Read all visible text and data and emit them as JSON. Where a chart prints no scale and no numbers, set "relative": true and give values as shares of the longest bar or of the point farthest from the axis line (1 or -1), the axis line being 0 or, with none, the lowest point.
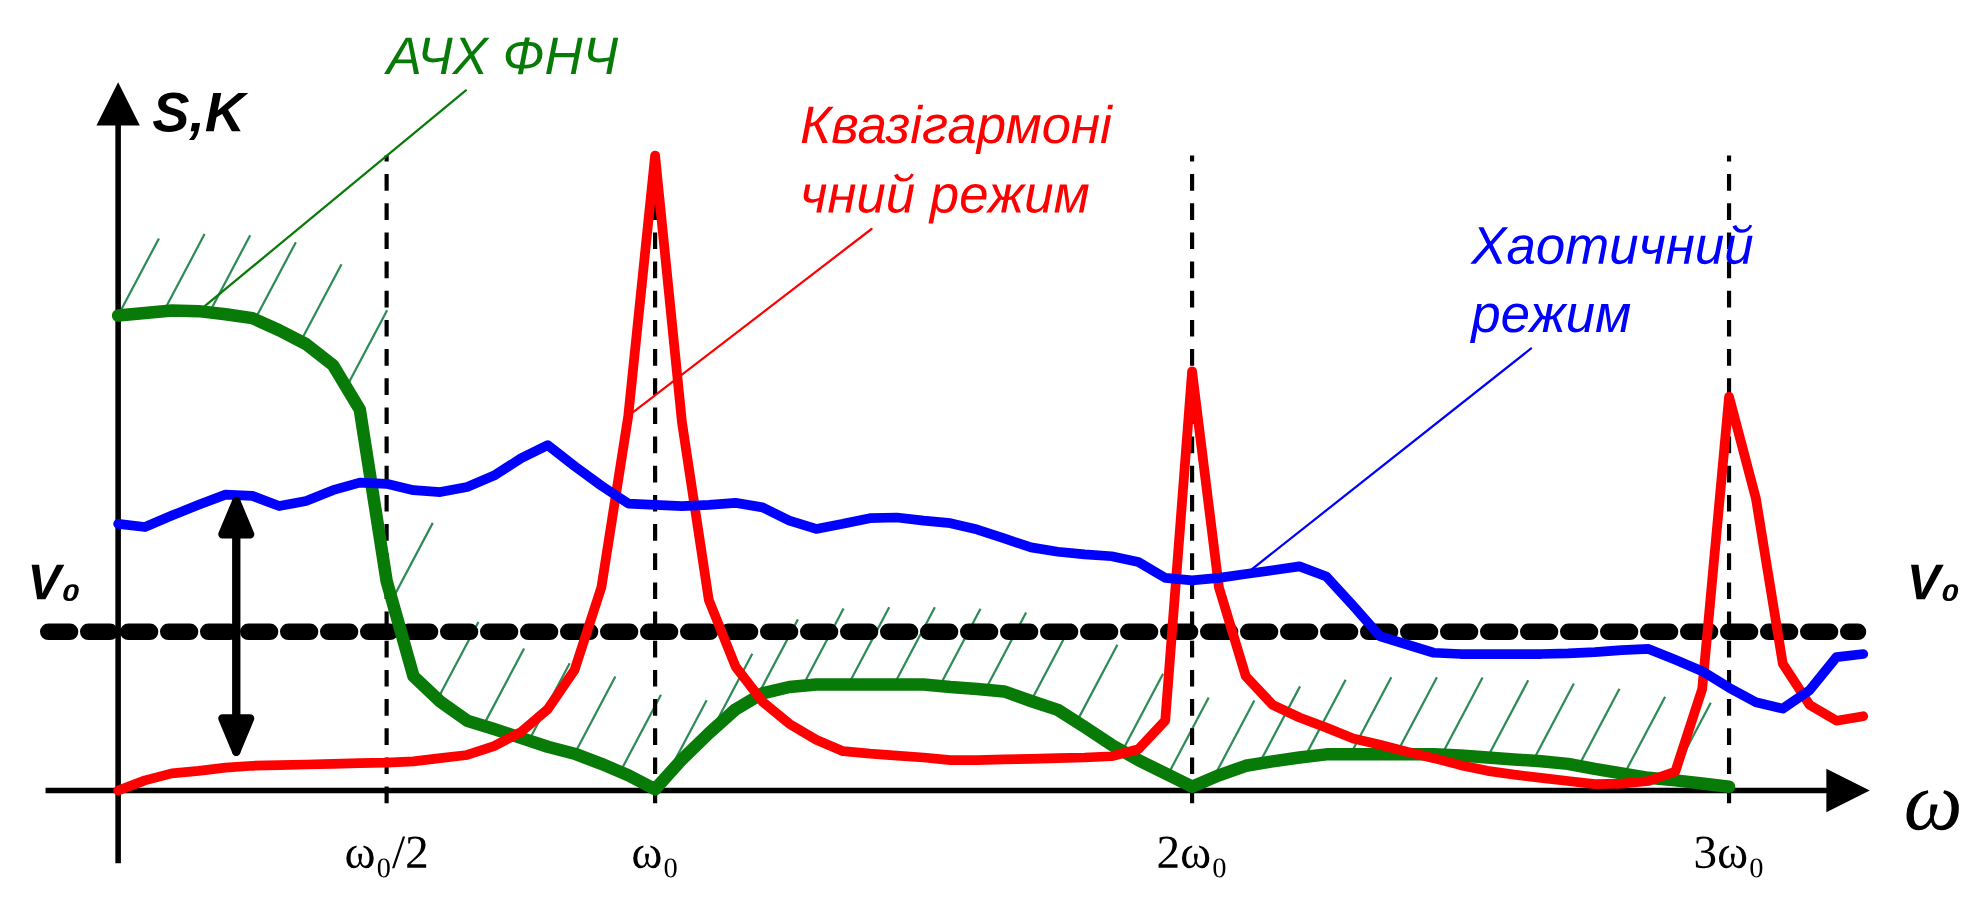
{
  "chart_data": {
    "type": "line",
    "relative": true,
    "ylabel": "S,K",
    "xlabel": "ω",
    "categories": [
      null,
      null,
      null,
      null,
      null,
      null,
      null,
      null,
      null,
      null,
      "ω₀/2",
      null,
      null,
      null,
      null,
      null,
      null,
      null,
      null,
      null,
      "ω₀",
      null,
      null,
      null,
      null,
      null,
      null,
      null,
      null,
      null,
      null,
      null,
      null,
      null,
      null,
      null,
      null,
      null,
      null,
      null,
      "2ω₀",
      null,
      null,
      null,
      null,
      null,
      null,
      null,
      null,
      null,
      null,
      null,
      null,
      null,
      null,
      null,
      null,
      null,
      null,
      null,
      "3ω₀",
      null,
      null,
      null,
      null,
      null
    ],
    "grid": false,
    "legend": false,
    "line_style": "solid",
    "marker": "none",
    "series": [
      {
        "name": "АЧХ ФНЧ",
        "color": "#087a08",
        "values": [
          0.748,
          0.752,
          0.756,
          0.755,
          0.75,
          0.744,
          0.725,
          0.703,
          0.67,
          0.6,
          0.33,
          0.18,
          0.14,
          0.11,
          0.097,
          0.083,
          0.069,
          0.058,
          0.042,
          0.024,
          0.002,
          0.049,
          0.09,
          0.128,
          0.153,
          0.163,
          0.167,
          0.167,
          0.167,
          0.167,
          0.167,
          0.163,
          0.16,
          0.156,
          0.141,
          0.127,
          0.1,
          0.072,
          0.048,
          0.027,
          0.006,
          0.024,
          0.039,
          0.046,
          0.052,
          0.057,
          0.057,
          0.057,
          0.057,
          0.057,
          0.055,
          0.052,
          0.049,
          0.046,
          0.042,
          0.034,
          0.027,
          0.02,
          0.016,
          0.011,
          0.006,
          null,
          null,
          null,
          null,
          null
        ]
      },
      {
        "name": "Квазігармоні\nчний режим",
        "color": "#ff0000",
        "values": [
          0,
          0.016,
          0.027,
          0.031,
          0.036,
          0.039,
          0.04,
          0.041,
          0.042,
          0.043,
          0.044,
          0.046,
          0.051,
          0.056,
          0.07,
          0.092,
          0.128,
          0.19,
          0.32,
          0.59,
          1,
          0.58,
          0.3,
          0.195,
          0.14,
          0.105,
          0.08,
          0.062,
          0.058,
          0.055,
          0.052,
          0.048,
          0.048,
          0.049,
          0.05,
          0.051,
          0.052,
          0.054,
          0.065,
          0.11,
          0.66,
          0.32,
          0.18,
          0.135,
          0.115,
          0.099,
          0.082,
          0.072,
          0.061,
          0.051,
          0.04,
          0.031,
          0.025,
          0.02,
          0.015,
          0.01,
          0.011,
          0.015,
          0.03,
          0.16,
          0.62,
          0.46,
          0.2,
          0.135,
          0.11,
          0.117
        ]
      },
      {
        "name": "Хаотичний\nрежим",
        "color": "#0000ff",
        "values": [
          0.42,
          0.415,
          0.433,
          0.45,
          0.466,
          0.464,
          0.448,
          0.456,
          0.473,
          0.485,
          0.483,
          0.473,
          0.47,
          0.478,
          0.496,
          0.523,
          0.544,
          0.511,
          0.48,
          0.452,
          0.45,
          0.448,
          0.45,
          0.453,
          0.446,
          0.425,
          0.412,
          0.42,
          0.429,
          0.43,
          0.425,
          0.421,
          0.411,
          0.397,
          0.383,
          0.376,
          0.372,
          0.369,
          0.36,
          0.335,
          0.331,
          0.335,
          0.341,
          0.347,
          0.353,
          0.337,
          0.291,
          0.243,
          0.23,
          0.217,
          0.215,
          0.215,
          0.215,
          0.215,
          0.216,
          0.218,
          0.221,
          0.223,
          0.206,
          0.188,
          0.162,
          0.139,
          0.129,
          0.158,
          0.21,
          0.215
        ]
      }
    ],
    "ref_lines": [
      {
        "axis": "y",
        "value": 0.25,
        "label": "V₀",
        "color": "#000000",
        "line_style": "dashed"
      },
      {
        "axis": "x",
        "value": "ω₀/2",
        "color": "#000000",
        "line_style": "dashed"
      },
      {
        "axis": "x",
        "value": "ω₀",
        "color": "#000000",
        "line_style": "dashed"
      },
      {
        "axis": "x",
        "value": "2ω₀",
        "color": "#000000",
        "line_style": "dashed"
      },
      {
        "axis": "x",
        "value": "3ω₀",
        "color": "#000000",
        "line_style": "dashed"
      }
    ]
  }
}
